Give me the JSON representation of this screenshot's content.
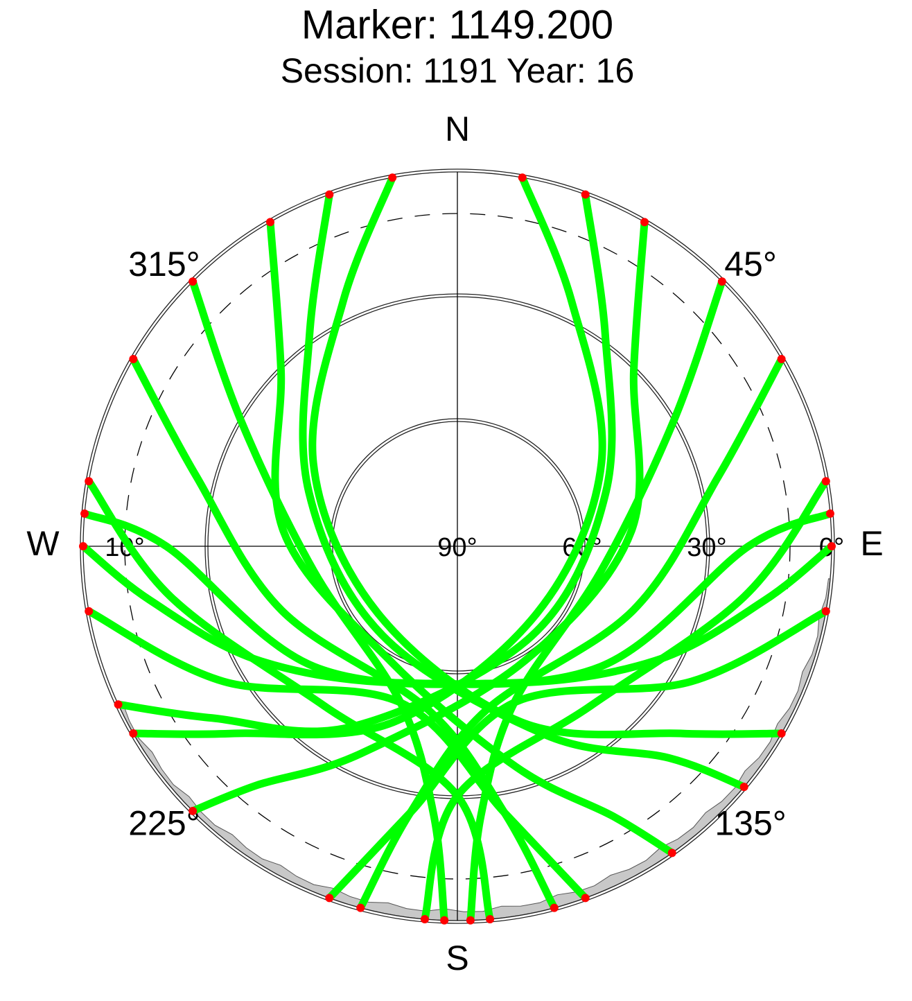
{
  "chart_data": {
    "type": "polar",
    "title": "Marker: 1149.200",
    "subtitle": "Session: 1191 Year: 16",
    "rlim": [
      90,
      0
    ],
    "rticks": [
      {
        "value": 0,
        "label": "0°"
      },
      {
        "value": 30,
        "label": "30°"
      },
      {
        "value": 60,
        "label": "60°"
      },
      {
        "value": 90,
        "label": "90°"
      }
    ],
    "dashed_ring": {
      "value": 10,
      "label": "10°"
    },
    "azticks": [
      {
        "value": 0,
        "label": "N"
      },
      {
        "value": 45,
        "label": "45°"
      },
      {
        "value": 90,
        "label": "E"
      },
      {
        "value": 135,
        "label": "135°"
      },
      {
        "value": 180,
        "label": "S"
      },
      {
        "value": 225,
        "label": "225°"
      },
      {
        "value": 270,
        "label": "W"
      },
      {
        "value": 315,
        "label": "315°"
      }
    ],
    "color": "#00ff00",
    "endpoint_color": "#ff0000",
    "tracks": [
      {
        "azimuth": [
          10,
          25,
          60,
          130,
          200,
          230,
          240
        ],
        "elevation": [
          0,
          25,
          50,
          65,
          45,
          20,
          0
        ]
      },
      {
        "azimuth": [
          20,
          35,
          70,
          140,
          210,
          235,
          245
        ],
        "elevation": [
          0,
          28,
          52,
          62,
          40,
          18,
          0
        ]
      },
      {
        "azimuth": [
          30,
          45,
          85,
          150,
          205,
          220,
          225
        ],
        "elevation": [
          0,
          30,
          48,
          58,
          35,
          15,
          0
        ]
      },
      {
        "azimuth": [
          350,
          335,
          300,
          230,
          160,
          130,
          120
        ],
        "elevation": [
          0,
          25,
          50,
          65,
          45,
          20,
          0
        ]
      },
      {
        "azimuth": [
          340,
          325,
          290,
          220,
          155,
          135,
          130
        ],
        "elevation": [
          0,
          28,
          52,
          62,
          40,
          18,
          0
        ]
      },
      {
        "azimuth": [
          330,
          315,
          275,
          210,
          165,
          150,
          145
        ],
        "elevation": [
          0,
          30,
          48,
          58,
          35,
          15,
          0
        ]
      },
      {
        "azimuth": [
          60,
          75,
          110,
          170,
          190,
          195
        ],
        "elevation": [
          0,
          25,
          45,
          50,
          25,
          0
        ]
      },
      {
        "azimuth": [
          300,
          285,
          250,
          190,
          170,
          165
        ],
        "elevation": [
          0,
          25,
          45,
          50,
          25,
          0
        ]
      },
      {
        "azimuth": [
          80,
          100,
          140,
          180,
          185
        ],
        "elevation": [
          0,
          20,
          40,
          30,
          0
        ]
      },
      {
        "azimuth": [
          280,
          260,
          220,
          180,
          175
        ],
        "elevation": [
          0,
          20,
          40,
          30,
          0
        ]
      },
      {
        "azimuth": [
          85,
          90,
          130,
          200,
          240,
          260,
          270
        ],
        "elevation": [
          0,
          20,
          45,
          55,
          35,
          15,
          0
        ]
      },
      {
        "azimuth": [
          275,
          270,
          230,
          160,
          120,
          100,
          90
        ],
        "elevation": [
          0,
          20,
          45,
          55,
          35,
          15,
          0
        ]
      },
      {
        "azimuth": [
          100,
          120,
          160,
          190,
          200
        ],
        "elevation": [
          0,
          25,
          50,
          25,
          0
        ]
      },
      {
        "azimuth": [
          260,
          240,
          200,
          170,
          160
        ],
        "elevation": [
          0,
          25,
          50,
          25,
          0
        ]
      },
      {
        "azimuth": [
          45,
          60,
          100,
          160,
          175,
          178
        ],
        "elevation": [
          0,
          30,
          55,
          50,
          25,
          0
        ]
      },
      {
        "azimuth": [
          315,
          300,
          260,
          200,
          185,
          182
        ],
        "elevation": [
          0,
          30,
          55,
          50,
          25,
          0
        ]
      }
    ]
  }
}
